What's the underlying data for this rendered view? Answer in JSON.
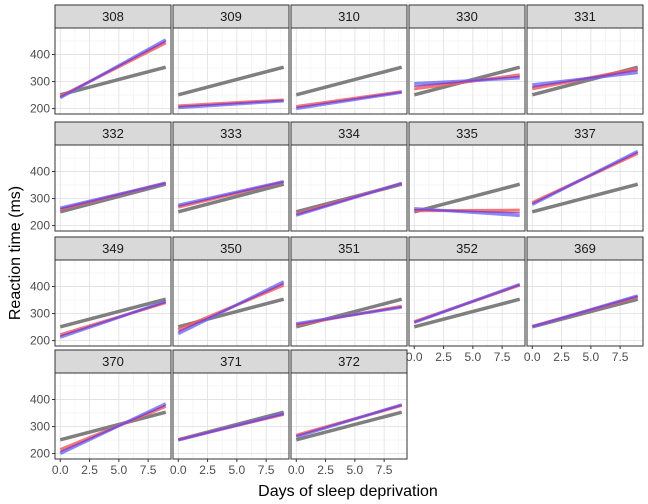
{
  "chart_data": {
    "type": "line",
    "xlabel": "Days of sleep deprivation",
    "ylabel": "Reaction time (ms)",
    "xlim": [
      0,
      9
    ],
    "ylim": [
      200,
      450
    ],
    "x_ticks": [
      0,
      2.5,
      5,
      7.5
    ],
    "x_tick_labels": [
      "0.0",
      "2.5",
      "5.0",
      "7.5"
    ],
    "y_ticks": [
      200,
      300,
      400
    ],
    "y_tick_labels": [
      "200",
      "300",
      "400"
    ],
    "grid": true,
    "colors": {
      "gray": "#7f7f7f",
      "red": "#f25f5f",
      "blue": "#6b6bf2",
      "purple": "#8f3fbf"
    },
    "panels": [
      {
        "label": "308",
        "gray": [
          251,
          353
        ],
        "red": [
          245,
          443
        ],
        "blue": [
          240,
          455
        ],
        "purple": [
          243,
          449
        ]
      },
      {
        "label": "309",
        "gray": [
          251,
          353
        ],
        "red": [
          210,
          232
        ],
        "blue": [
          203,
          228
        ],
        "purple": [
          207,
          230
        ]
      },
      {
        "label": "310",
        "gray": [
          251,
          353
        ],
        "red": [
          208,
          263
        ],
        "blue": [
          200,
          260
        ],
        "purple": [
          204,
          261
        ]
      },
      {
        "label": "330",
        "gray": [
          251,
          353
        ],
        "red": [
          273,
          325
        ],
        "blue": [
          293,
          313
        ],
        "purple": [
          283,
          319
        ]
      },
      {
        "label": "331",
        "gray": [
          251,
          353
        ],
        "red": [
          273,
          348
        ],
        "blue": [
          288,
          333
        ],
        "purple": [
          280,
          341
        ]
      },
      {
        "label": "332",
        "gray": [
          251,
          353
        ],
        "red": [
          260,
          358
        ],
        "blue": [
          265,
          357
        ],
        "purple": [
          262,
          357
        ]
      },
      {
        "label": "333",
        "gray": [
          251,
          353
        ],
        "red": [
          268,
          362
        ],
        "blue": [
          276,
          363
        ],
        "purple": [
          272,
          362
        ]
      },
      {
        "label": "334",
        "gray": [
          251,
          353
        ],
        "red": [
          243,
          356
        ],
        "blue": [
          238,
          357
        ],
        "purple": [
          240,
          356
        ]
      },
      {
        "label": "335",
        "gray": [
          251,
          353
        ],
        "red": [
          255,
          257
        ],
        "blue": [
          263,
          237
        ],
        "purple": [
          259,
          247
        ]
      },
      {
        "label": "337",
        "gray": [
          251,
          353
        ],
        "red": [
          285,
          467
        ],
        "blue": [
          278,
          475
        ],
        "purple": [
          281,
          471
        ]
      },
      {
        "label": "349",
        "gray": [
          251,
          353
        ],
        "red": [
          222,
          340
        ],
        "blue": [
          212,
          345
        ],
        "purple": [
          217,
          342
        ]
      },
      {
        "label": "350",
        "gray": [
          251,
          353
        ],
        "red": [
          241,
          405
        ],
        "blue": [
          225,
          418
        ],
        "purple": [
          233,
          411
        ]
      },
      {
        "label": "351",
        "gray": [
          251,
          353
        ],
        "red": [
          258,
          327
        ],
        "blue": [
          263,
          323
        ],
        "purple": [
          260,
          325
        ]
      },
      {
        "label": "352",
        "gray": [
          251,
          353
        ],
        "red": [
          270,
          405
        ],
        "blue": [
          267,
          408
        ],
        "purple": [
          268,
          406
        ]
      },
      {
        "label": "369",
        "gray": [
          251,
          353
        ],
        "red": [
          253,
          362
        ],
        "blue": [
          251,
          366
        ],
        "purple": [
          252,
          364
        ]
      },
      {
        "label": "370",
        "gray": [
          251,
          353
        ],
        "red": [
          215,
          374
        ],
        "blue": [
          200,
          385
        ],
        "purple": [
          207,
          379
        ]
      },
      {
        "label": "371",
        "gray": [
          251,
          353
        ],
        "red": [
          252,
          345
        ],
        "blue": [
          250,
          348
        ],
        "purple": [
          251,
          346
        ]
      },
      {
        "label": "372",
        "gray": [
          251,
          353
        ],
        "red": [
          268,
          378
        ],
        "blue": [
          262,
          381
        ],
        "purple": [
          265,
          379
        ]
      }
    ]
  }
}
